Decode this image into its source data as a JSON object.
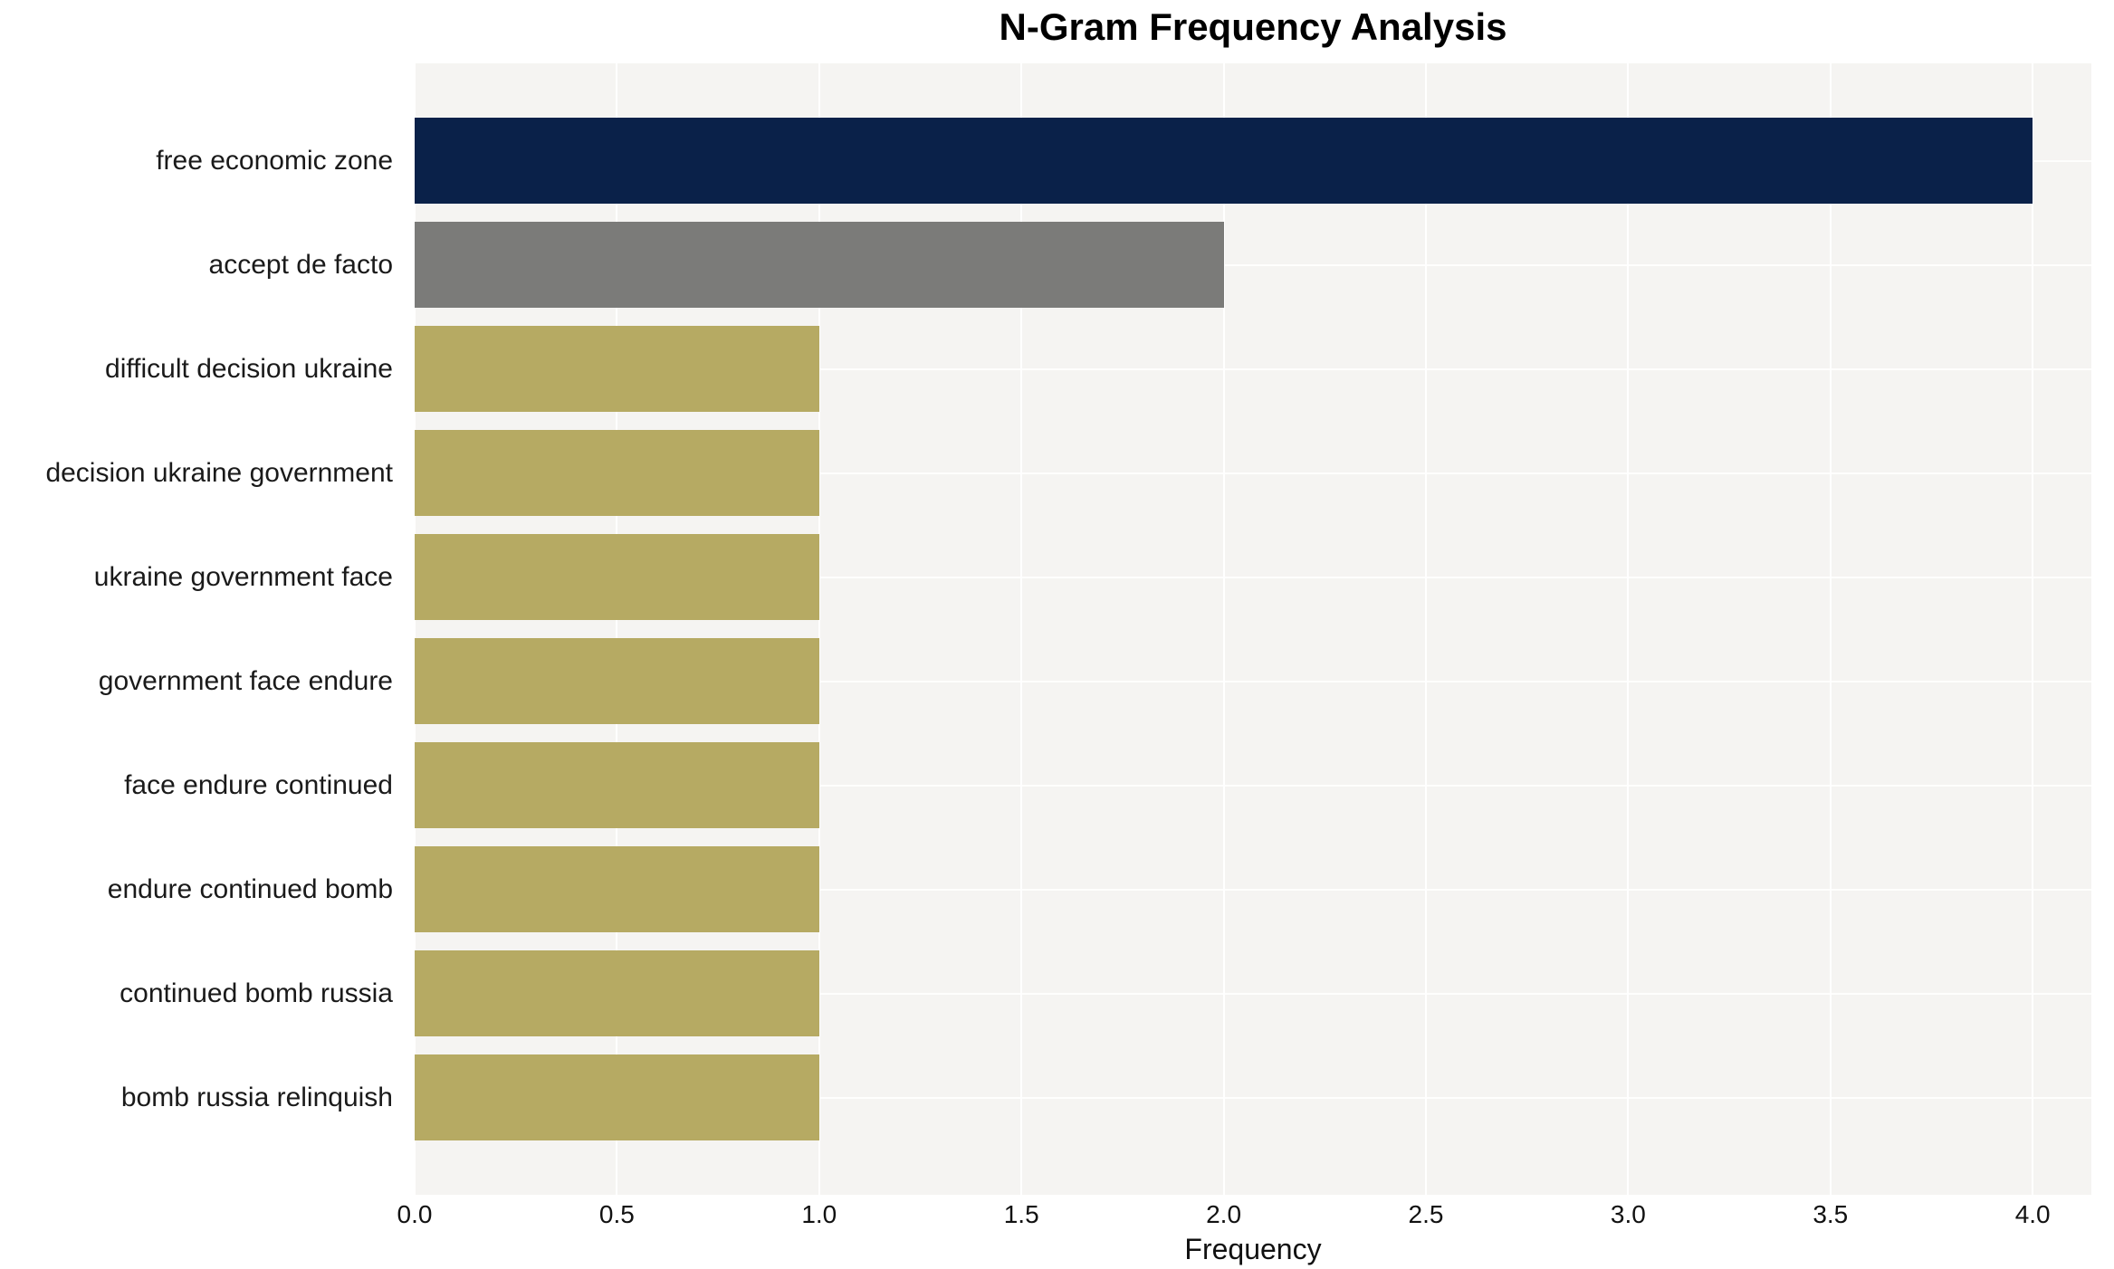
{
  "chart_data": {
    "type": "bar",
    "orientation": "horizontal",
    "title": "N-Gram Frequency Analysis",
    "xlabel": "Frequency",
    "ylabel": "",
    "categories": [
      "free economic zone",
      "accept de facto",
      "difficult decision ukraine",
      "decision ukraine government",
      "ukraine government face",
      "government face endure",
      "face endure continued",
      "endure continued bomb",
      "continued bomb russia",
      "bomb russia relinquish"
    ],
    "values": [
      4,
      2,
      1,
      1,
      1,
      1,
      1,
      1,
      1,
      1
    ],
    "bar_colors": [
      "#0a2149",
      "#7b7b79",
      "#b6aa63",
      "#b6aa63",
      "#b6aa63",
      "#b6aa63",
      "#b6aa63",
      "#b6aa63",
      "#b6aa63",
      "#b6aa63"
    ],
    "xlim": [
      0,
      4
    ],
    "x_ticks": [
      0.0,
      0.5,
      1.0,
      1.5,
      2.0,
      2.5,
      3.0,
      3.5,
      4.0
    ],
    "x_tick_labels": [
      "0.0",
      "0.5",
      "1.0",
      "1.5",
      "2.0",
      "2.5",
      "3.0",
      "3.5",
      "4.0"
    ],
    "grid": true,
    "legend": false,
    "plot_background": "#f5f4f2",
    "data_fraction_of_plot_width": 96.5
  }
}
